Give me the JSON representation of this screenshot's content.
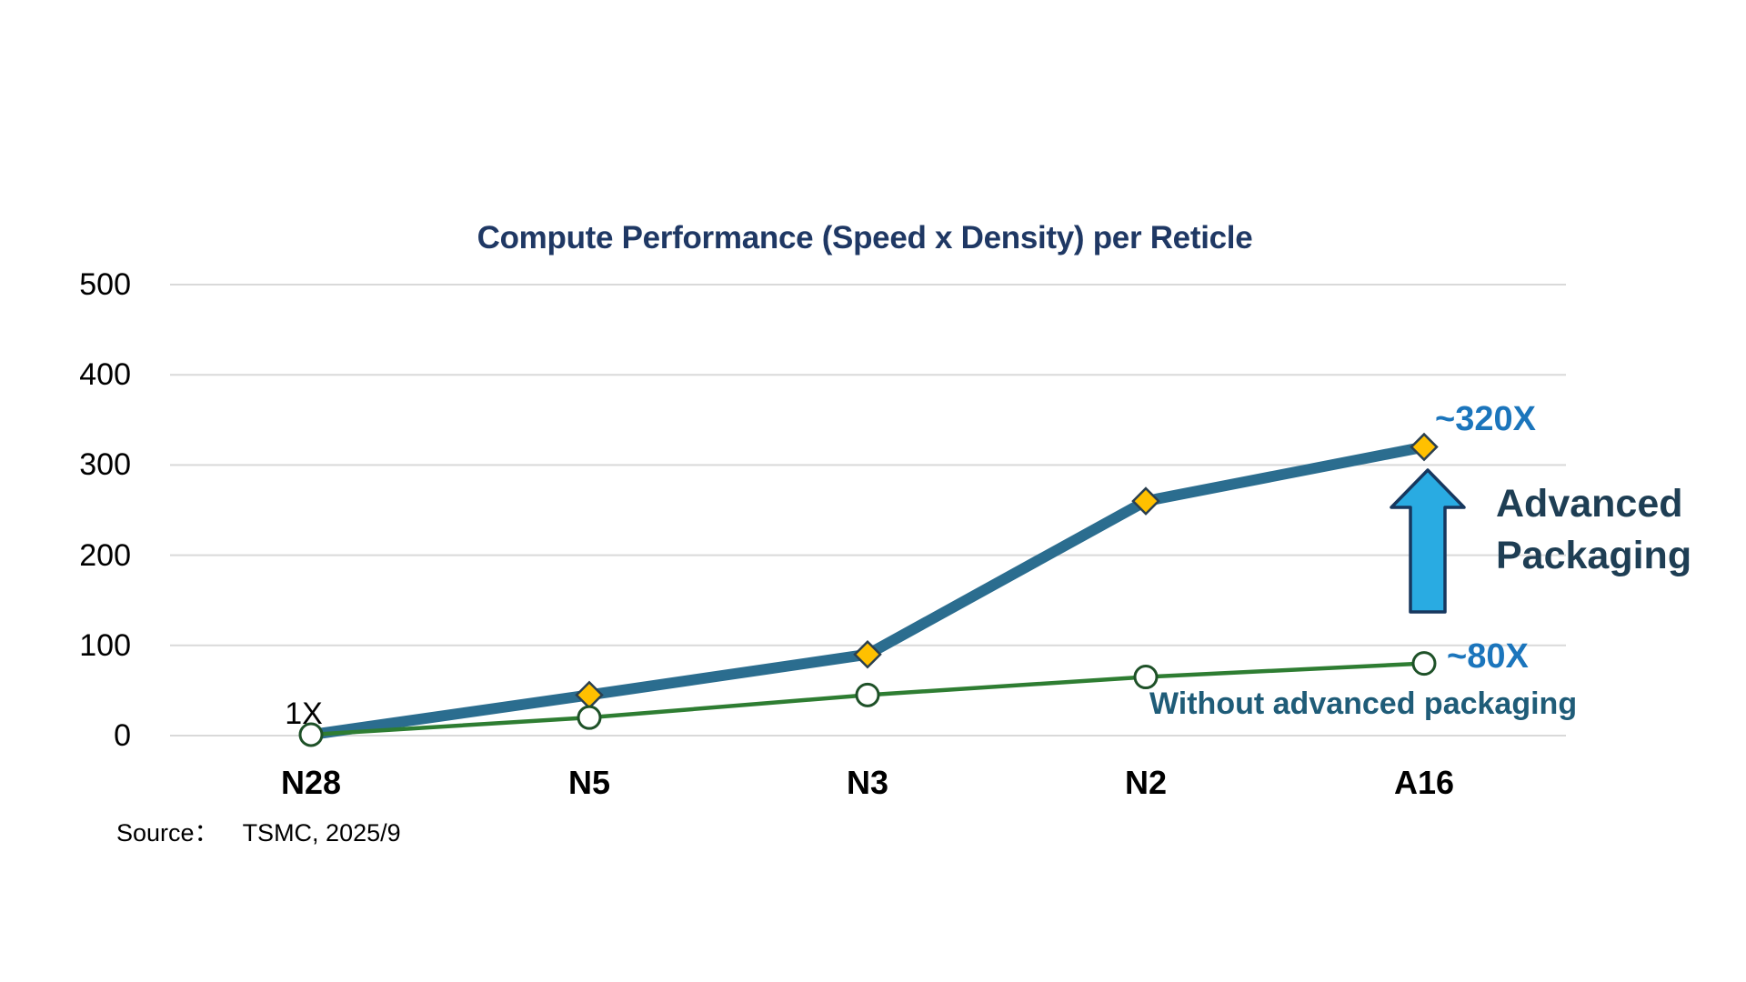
{
  "chart_data": {
    "type": "line",
    "title": "Compute Performance (Speed x Density) per Reticle",
    "categories": [
      "N28",
      "N5",
      "N3",
      "N2",
      "A16"
    ],
    "series": [
      {
        "name": "Advanced Packaging",
        "marker": "diamond",
        "values": [
          1,
          45,
          90,
          260,
          320
        ],
        "end_label": "~320X"
      },
      {
        "name": "Without advanced packaging",
        "marker": "circle",
        "values": [
          1,
          20,
          45,
          65,
          80
        ],
        "end_label": "~80X"
      }
    ],
    "xlabel": "",
    "ylabel": "",
    "ylim": [
      0,
      500
    ],
    "yticks": [
      0,
      100,
      200,
      300,
      400,
      500
    ],
    "grid": "horizontal",
    "legend_position": "none (inline text annotations)"
  },
  "annotations": {
    "start_label": "1X",
    "top_label": "~320X",
    "bottom_label": "~80X",
    "arrow_label_line1": "Advanced",
    "arrow_label_line2": "Packaging",
    "without_label": "Without advanced packaging",
    "arrow_shape": "up-arrow"
  },
  "source": {
    "prefix": "Source：",
    "text": "TSMC, 2025/9"
  },
  "colors": {
    "title": "#1F3864",
    "axis_text": "#000000",
    "gridline": "#D9D9D9",
    "line_advanced": "#2B6D8F",
    "line_without": "#2E7D32",
    "marker_diamond_fill": "#FFC000",
    "marker_diamond_stroke": "#2A3F4F",
    "marker_circle_fill": "#FFFFFF",
    "marker_circle_stroke": "#1E5128",
    "callout_blue": "#1B75BC",
    "advanced_label": "#1E3E54",
    "without_label": "#1F5C78",
    "arrow_fill": "#29ABE2",
    "arrow_stroke": "#17375E",
    "background": "#FFFFFF"
  }
}
